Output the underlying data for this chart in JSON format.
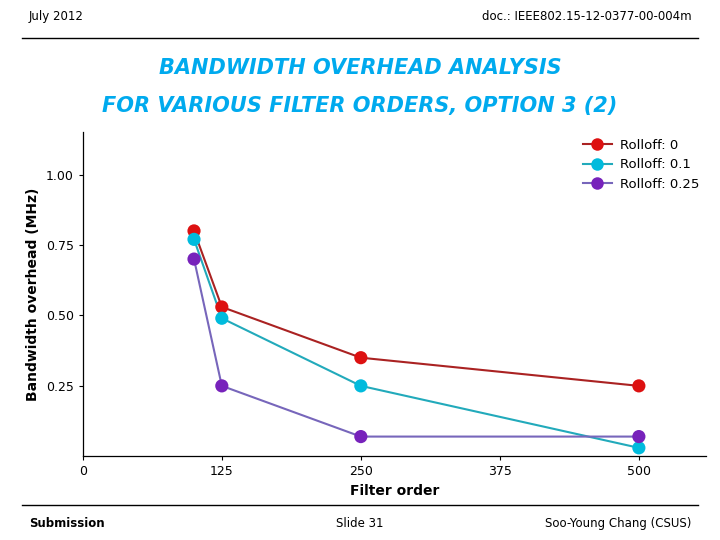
{
  "title_line1": "BANDWIDTH OVERHEAD ANALYSIS",
  "title_line2": "FOR VARIOUS FILTER ORDERS, OPTION 3 (2)",
  "header_left": "July 2012",
  "header_right": "doc.: IEEE802.15-12-0377-00-004m",
  "footer_left": "Submission",
  "footer_center": "Slide 31",
  "footer_right": "Soo-Young Chang (CSUS)",
  "xlabel": "Filter order",
  "ylabel": "Bandwidth overhead (MHz)",
  "series": [
    {
      "label": "Rolloff: 0",
      "color": "#dd1111",
      "line_color": "#aa2222",
      "x": [
        100,
        125,
        250,
        500
      ],
      "y": [
        0.8,
        0.53,
        0.35,
        0.25
      ]
    },
    {
      "label": "Rolloff: 0.1",
      "color": "#00bbdd",
      "line_color": "#22aabb",
      "x": [
        100,
        125,
        250,
        500
      ],
      "y": [
        0.77,
        0.49,
        0.25,
        0.03
      ]
    },
    {
      "label": "Rolloff: 0.25",
      "color": "#7722bb",
      "line_color": "#7766bb",
      "x": [
        100,
        125,
        250,
        500
      ],
      "y": [
        0.7,
        0.25,
        0.07,
        0.07
      ]
    }
  ],
  "xlim": [
    0,
    560
  ],
  "ylim": [
    0,
    1.15
  ],
  "xticks": [
    0,
    125,
    250,
    375,
    500
  ],
  "yticks": [
    0.25,
    0.5,
    0.75,
    1.0
  ],
  "title_color": "#00aaee",
  "background_color": "#ffffff",
  "header_fontsize": 8.5,
  "title_fontsize": 15,
  "axis_label_fontsize": 10,
  "tick_fontsize": 9,
  "legend_fontsize": 9.5,
  "footer_fontsize": 8.5
}
